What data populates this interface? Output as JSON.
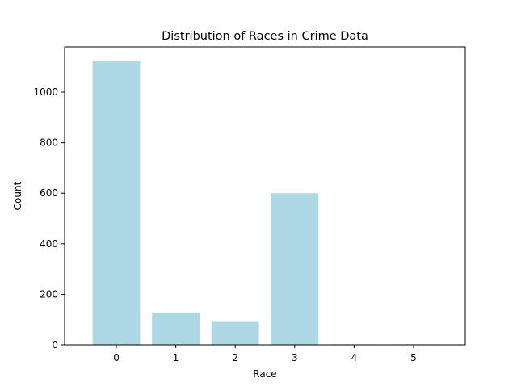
{
  "chart_data": {
    "type": "bar",
    "title": "Distribution of Races in Crime Data",
    "xlabel": "Race",
    "ylabel": "Count",
    "categories": [
      "0",
      "1",
      "2",
      "3",
      "4",
      "5"
    ],
    "values": [
      1123,
      128,
      94,
      600,
      2,
      2
    ],
    "ylim": [
      0,
      1179
    ],
    "yticks": [
      0,
      200,
      400,
      600,
      800,
      1000
    ],
    "bar_color": "#add8e6",
    "grid": false,
    "legend": "none"
  }
}
